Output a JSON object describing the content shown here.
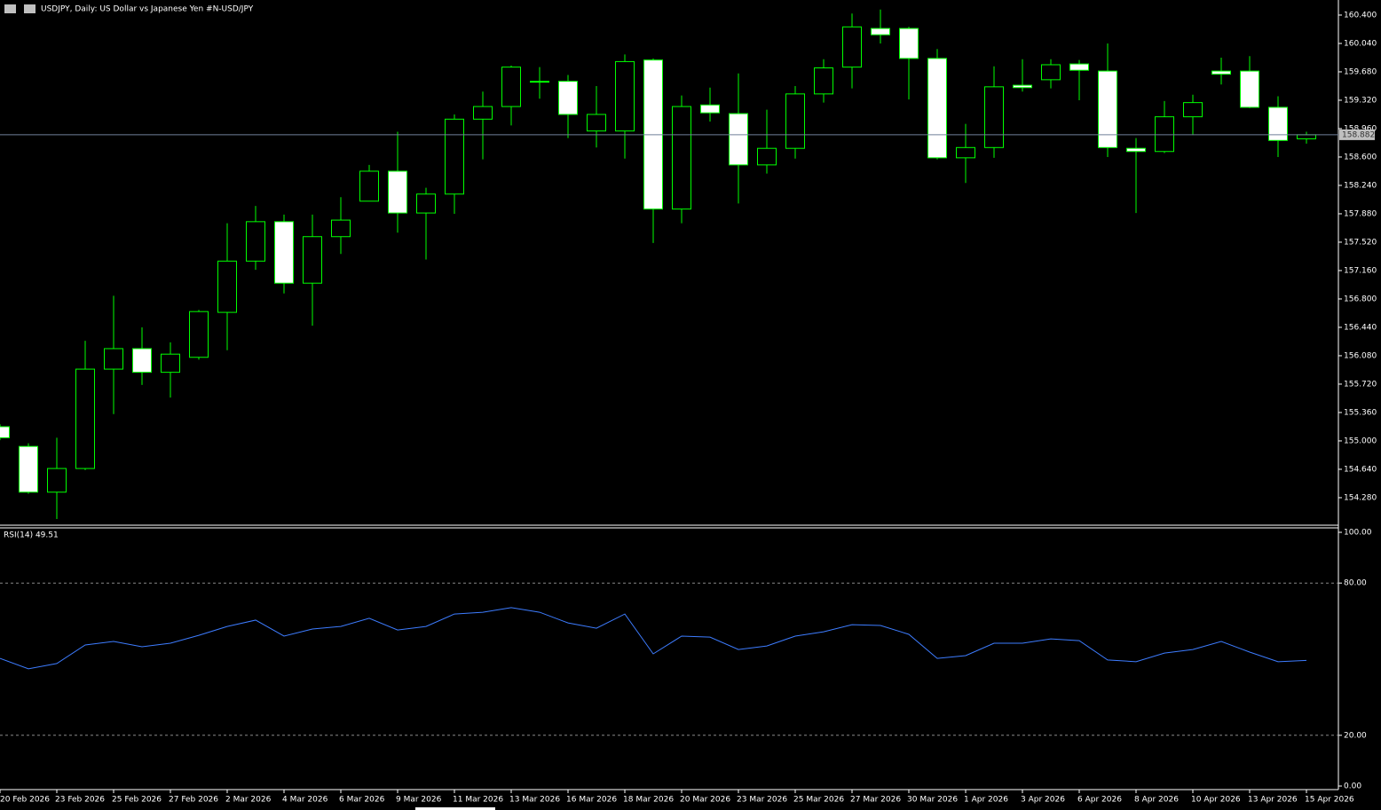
{
  "chart_data": [
    {
      "type": "candlestick",
      "title": "USDJPY, Daily:  US Dollar vs  Japanese Yen #N-USD/JPY",
      "categories": [
        "20 Feb 2026",
        null,
        "23 Feb 2026",
        null,
        "25 Feb 2026",
        null,
        "27 Feb 2026",
        null,
        "2 Mar 2026",
        null,
        "4 Mar 2026",
        null,
        "6 Mar 2026",
        null,
        "9 Mar 2026",
        null,
        "11 Mar 2026",
        null,
        "13 Mar 2026",
        null,
        "16 Mar 2026",
        null,
        "18 Mar 2026",
        null,
        "20 Mar 2026",
        null,
        "23 Mar 2026",
        null,
        "25 Mar 2026",
        null,
        "27 Mar 2026",
        null,
        "30 Mar 2026",
        null,
        "1 Apr 2026",
        null,
        "3 Apr 2026",
        null,
        "6 Apr 2026",
        null,
        "8 Apr 2026",
        null,
        "10 Apr 2026",
        null,
        "13 Apr 2026",
        null,
        "15 Apr 2026"
      ],
      "open": [
        155.18,
        154.93,
        154.35,
        154.65,
        155.91,
        156.17,
        155.87,
        156.06,
        156.63,
        157.28,
        157.78,
        157.0,
        157.59,
        158.04,
        158.42,
        157.89,
        158.13,
        159.08,
        159.24,
        159.56,
        159.56,
        158.93,
        158.93,
        159.83,
        157.94,
        159.26,
        159.15,
        158.5,
        158.71,
        159.4,
        159.74,
        160.23,
        160.23,
        159.85,
        158.59,
        158.72,
        159.51,
        159.58,
        159.78,
        159.69,
        158.71,
        158.67,
        159.11,
        159.69,
        159.69,
        159.23,
        158.83
      ],
      "high": [
        155.21,
        154.97,
        155.04,
        156.27,
        156.84,
        156.44,
        156.25,
        156.66,
        157.76,
        157.98,
        157.87,
        157.87,
        158.09,
        158.5,
        158.92,
        158.21,
        159.14,
        159.43,
        159.76,
        159.74,
        159.64,
        159.5,
        159.9,
        159.85,
        159.38,
        159.48,
        159.66,
        159.2,
        159.5,
        159.84,
        160.42,
        160.47,
        160.25,
        159.97,
        159.02,
        159.75,
        159.84,
        159.84,
        159.83,
        160.04,
        158.84,
        159.31,
        159.39,
        159.86,
        159.88,
        159.37,
        158.92
      ],
      "low": [
        155.01,
        154.33,
        154.01,
        154.63,
        155.34,
        155.71,
        155.55,
        156.03,
        156.15,
        157.17,
        156.87,
        156.46,
        157.37,
        158.04,
        157.64,
        157.3,
        157.88,
        158.57,
        159.0,
        159.34,
        158.84,
        158.72,
        158.58,
        157.51,
        157.76,
        159.05,
        158.01,
        158.39,
        158.58,
        159.29,
        159.47,
        160.04,
        159.33,
        158.57,
        158.27,
        158.59,
        159.43,
        159.47,
        159.32,
        158.6,
        157.89,
        158.65,
        158.88,
        159.52,
        159.22,
        158.6,
        158.77
      ],
      "close": [
        155.04,
        154.35,
        154.65,
        155.91,
        156.17,
        155.87,
        156.1,
        156.64,
        157.28,
        157.78,
        157.0,
        157.59,
        157.8,
        158.42,
        157.89,
        158.13,
        159.08,
        159.24,
        159.74,
        159.56,
        159.14,
        159.14,
        159.81,
        157.94,
        159.24,
        159.16,
        158.5,
        158.71,
        159.4,
        159.73,
        160.25,
        160.15,
        159.85,
        158.59,
        158.72,
        159.49,
        159.48,
        159.77,
        159.7,
        158.72,
        158.67,
        159.11,
        159.29,
        159.65,
        159.23,
        158.81,
        158.882
      ],
      "current_price": 158.882,
      "ylim": [
        153.942,
        160.591
      ],
      "yticks": [
        {
          "value": 154.28,
          "label": "154.280"
        },
        {
          "value": 154.64,
          "label": "154.640"
        },
        {
          "value": 155.0,
          "label": "155.000"
        },
        {
          "value": 155.36,
          "label": "155.360"
        },
        {
          "value": 155.72,
          "label": "155.720"
        },
        {
          "value": 156.08,
          "label": "156.080"
        },
        {
          "value": 156.44,
          "label": "156.440"
        },
        {
          "value": 156.8,
          "label": "156.800"
        },
        {
          "value": 157.16,
          "label": "157.160"
        },
        {
          "value": 157.52,
          "label": "157.520"
        },
        {
          "value": 157.88,
          "label": "157.880"
        },
        {
          "value": 158.24,
          "label": "158.240"
        },
        {
          "value": 158.6,
          "label": "158.600"
        },
        {
          "value": 158.96,
          "label": "158.960"
        },
        {
          "value": 159.32,
          "label": "159.320"
        },
        {
          "value": 159.68,
          "label": "159.680"
        },
        {
          "value": 160.04,
          "label": "160.040"
        },
        {
          "value": 160.4,
          "label": "160.400"
        }
      ],
      "up_color": "#000000",
      "down_color": "#ffffff",
      "outline_color": "#00ff00",
      "price_line_color": "#6f7f99"
    },
    {
      "type": "line",
      "title": "RSI(14) 49.51",
      "values": [
        50.3,
        46.2,
        48.3,
        55.6,
        57.0,
        54.9,
        56.3,
        59.4,
        62.9,
        65.4,
        59.1,
        61.9,
        62.9,
        66.1,
        61.5,
        62.9,
        67.8,
        68.5,
        70.3,
        68.5,
        64.3,
        62.2,
        67.8,
        52.1,
        59.1,
        58.7,
        53.8,
        55.2,
        59.1,
        60.8,
        63.6,
        63.3,
        59.8,
        50.3,
        51.4,
        56.3,
        56.3,
        58.0,
        57.3,
        49.7,
        49.0,
        52.4,
        53.8,
        57.0,
        52.8,
        49.0,
        49.51
      ],
      "color": "#3d7cff",
      "ylim": [
        0,
        100
      ],
      "yticks": [
        {
          "value": 0,
          "label": "0.00"
        },
        {
          "value": 20,
          "label": "20.00"
        },
        {
          "value": 80,
          "label": "80.00"
        },
        {
          "value": 100,
          "label": "100.00"
        }
      ],
      "levels": [
        20,
        80
      ]
    }
  ]
}
